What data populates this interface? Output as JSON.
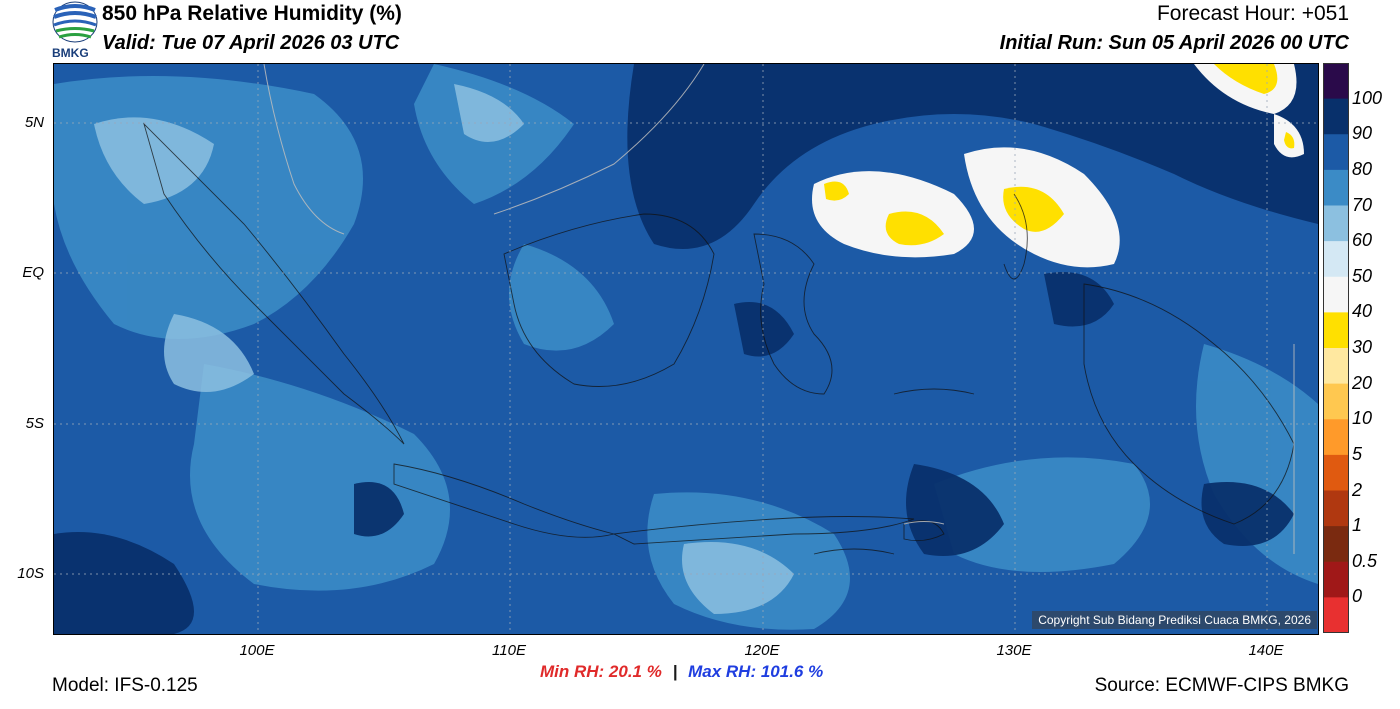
{
  "header": {
    "title": "850 hPa Relative Humidity (%)",
    "valid": "Valid: Tue 07 April 2026 03 UTC",
    "forecast_hour": "Forecast Hour: +051",
    "initial_run": "Initial Run: Sun 05 April 2026 00 UTC",
    "logo_text": "BMKG"
  },
  "map": {
    "lat_labels": [
      "5N",
      "EQ",
      "5S",
      "10S"
    ],
    "lon_labels": [
      "100E",
      "110E",
      "120E",
      "130E",
      "140E"
    ],
    "copyright": "Copyright Sub Bidang Prediksi Cuaca BMKG, 2026"
  },
  "colorbar": {
    "labels": [
      "100",
      "90",
      "80",
      "70",
      "60",
      "50",
      "40",
      "30",
      "20",
      "10",
      "5",
      "2",
      "1",
      "0.5",
      "0"
    ],
    "colors": [
      "#2a0a4a",
      "#08306b",
      "#1c5aa6",
      "#3b8bc6",
      "#8cc0e0",
      "#d4e8f4",
      "#f6f6f6",
      "#ffe000",
      "#ffe8a0",
      "#ffc850",
      "#ff9a2a",
      "#e05a10",
      "#b03810",
      "#7a2a10",
      "#a01818",
      "#e83030"
    ]
  },
  "stats": {
    "min": "Min RH:  20.1 %",
    "separator": "|",
    "max": "Max RH: 101.6 %"
  },
  "footer": {
    "model": "Model: IFS-0.125",
    "source": "Source: ECMWF-CIPS BMKG"
  }
}
